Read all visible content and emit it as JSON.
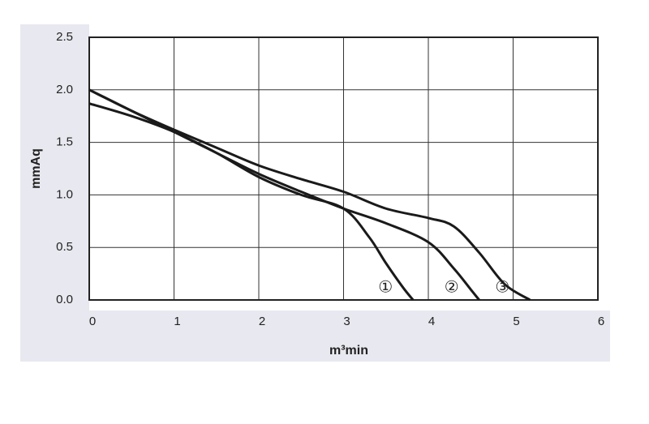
{
  "chart_data": {
    "type": "line",
    "xlabel": "m³min",
    "ylabel": "mmAq",
    "xlim": [
      0,
      6
    ],
    "xticks": [
      0,
      1,
      2,
      3,
      4,
      5,
      6
    ],
    "ylim": [
      0,
      2.5
    ],
    "yticks": [
      {
        "value": 0,
        "label": "0.0"
      },
      0.5,
      {
        "value": 1,
        "label": "1.0"
      },
      1.5,
      {
        "value": 2,
        "label": "2.0"
      },
      2.5
    ],
    "grid": true,
    "series": [
      {
        "name": "①",
        "color": "#1a1a1a",
        "x": [
          0,
          0.5,
          1,
          1.5,
          2,
          2.5,
          3,
          3.3,
          3.5,
          3.7,
          3.82
        ],
        "values": [
          1.87,
          1.75,
          1.6,
          1.4,
          1.17,
          1.0,
          0.87,
          0.6,
          0.35,
          0.12,
          0
        ]
      },
      {
        "name": "②",
        "color": "#1a1a1a",
        "x": [
          0,
          0.5,
          1,
          1.5,
          2,
          2.5,
          3,
          3.5,
          4,
          4.3,
          4.5,
          4.6
        ],
        "values": [
          2.0,
          1.8,
          1.6,
          1.4,
          1.2,
          1.03,
          0.87,
          0.73,
          0.55,
          0.3,
          0.1,
          0
        ]
      },
      {
        "name": "③",
        "color": "#1a1a1a",
        "x": [
          0,
          0.5,
          1,
          1.5,
          2,
          2.5,
          3,
          3.5,
          4,
          4.3,
          4.6,
          4.9,
          5.2
        ],
        "values": [
          2.0,
          1.8,
          1.62,
          1.45,
          1.28,
          1.15,
          1.03,
          0.87,
          0.78,
          0.7,
          0.45,
          0.15,
          0
        ]
      }
    ]
  }
}
